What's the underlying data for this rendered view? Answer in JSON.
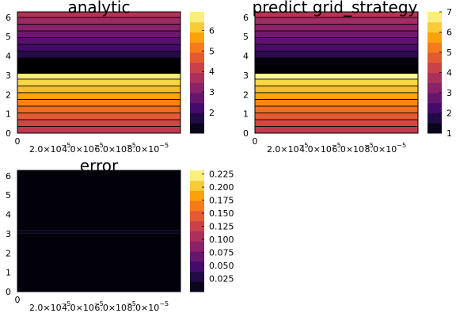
{
  "chart_data": [
    {
      "type": "heatmap",
      "title": "analytic",
      "x_tick_labels": [
        "0",
        "2.0×10⁻⁵",
        "4.0×10⁻⁵",
        "6.0×10⁻⁵",
        "8.0×10⁻⁵"
      ],
      "y_ticks": [
        0,
        1,
        2,
        3,
        4,
        5,
        6
      ],
      "xlim": [
        0,
        0.0001
      ],
      "ylim": [
        0,
        6.283
      ],
      "y_bands": [
        0,
        0.35,
        0.7,
        1.05,
        1.4,
        1.75,
        2.1,
        2.45,
        2.8,
        3.1,
        3.5,
        3.9,
        4.25,
        4.6,
        4.95,
        5.3,
        5.65,
        6.0,
        6.283
      ],
      "z_values": [
        4.0,
        4.3,
        4.7,
        5.0,
        5.3,
        5.7,
        6.0,
        6.3,
        6.6,
        0.9,
        1.0,
        1.8,
        2.2,
        2.5,
        2.8,
        3.2,
        3.5,
        3.8
      ],
      "colorbar": {
        "min": 1.0,
        "max": 6.9,
        "ticks": [
          2,
          3,
          4,
          5,
          6
        ]
      },
      "colormap": "inferno"
    },
    {
      "type": "heatmap",
      "title": "predict grid_strategy",
      "x_tick_labels": [
        "0",
        "2.0×10⁻⁵",
        "4.0×10⁻⁵",
        "6.0×10⁻⁵",
        "8.0×10⁻⁵"
      ],
      "y_ticks": [
        0,
        1,
        2,
        3,
        4,
        5,
        6
      ],
      "xlim": [
        0,
        0.0001
      ],
      "ylim": [
        0,
        6.283
      ],
      "y_bands": [
        0,
        0.35,
        0.7,
        1.05,
        1.4,
        1.75,
        2.1,
        2.45,
        2.8,
        3.1,
        3.5,
        3.9,
        4.25,
        4.6,
        4.95,
        5.3,
        5.65,
        6.0,
        6.283
      ],
      "z_values": [
        4.1,
        4.4,
        4.8,
        5.1,
        5.4,
        5.8,
        6.1,
        6.4,
        6.9,
        1.0,
        1.1,
        1.9,
        2.3,
        2.6,
        2.9,
        3.3,
        3.6,
        3.9
      ],
      "colorbar": {
        "min": 1.0,
        "max": 7.0,
        "ticks": [
          1,
          2,
          3,
          4,
          5,
          6,
          7
        ]
      },
      "colormap": "inferno"
    },
    {
      "type": "heatmap",
      "title": "error",
      "x_tick_labels": [
        "0",
        "2.0×10⁻⁵",
        "4.0×10⁻⁵",
        "6.0×10⁻⁵",
        "8.0×10⁻⁵"
      ],
      "y_ticks": [
        0,
        1,
        2,
        3,
        4,
        5,
        6
      ],
      "xlim": [
        0,
        0.0001
      ],
      "ylim": [
        0,
        6.283
      ],
      "y_bands": [
        0,
        3.0,
        3.2,
        6.283
      ],
      "z_values": [
        0.002,
        0.01,
        0.002
      ],
      "colorbar": {
        "min": 0.0,
        "max": 0.232,
        "ticks": [
          0.025,
          0.05,
          0.075,
          0.1,
          0.125,
          0.15,
          0.175,
          0.2,
          0.225
        ]
      },
      "colormap": "inferno"
    }
  ]
}
